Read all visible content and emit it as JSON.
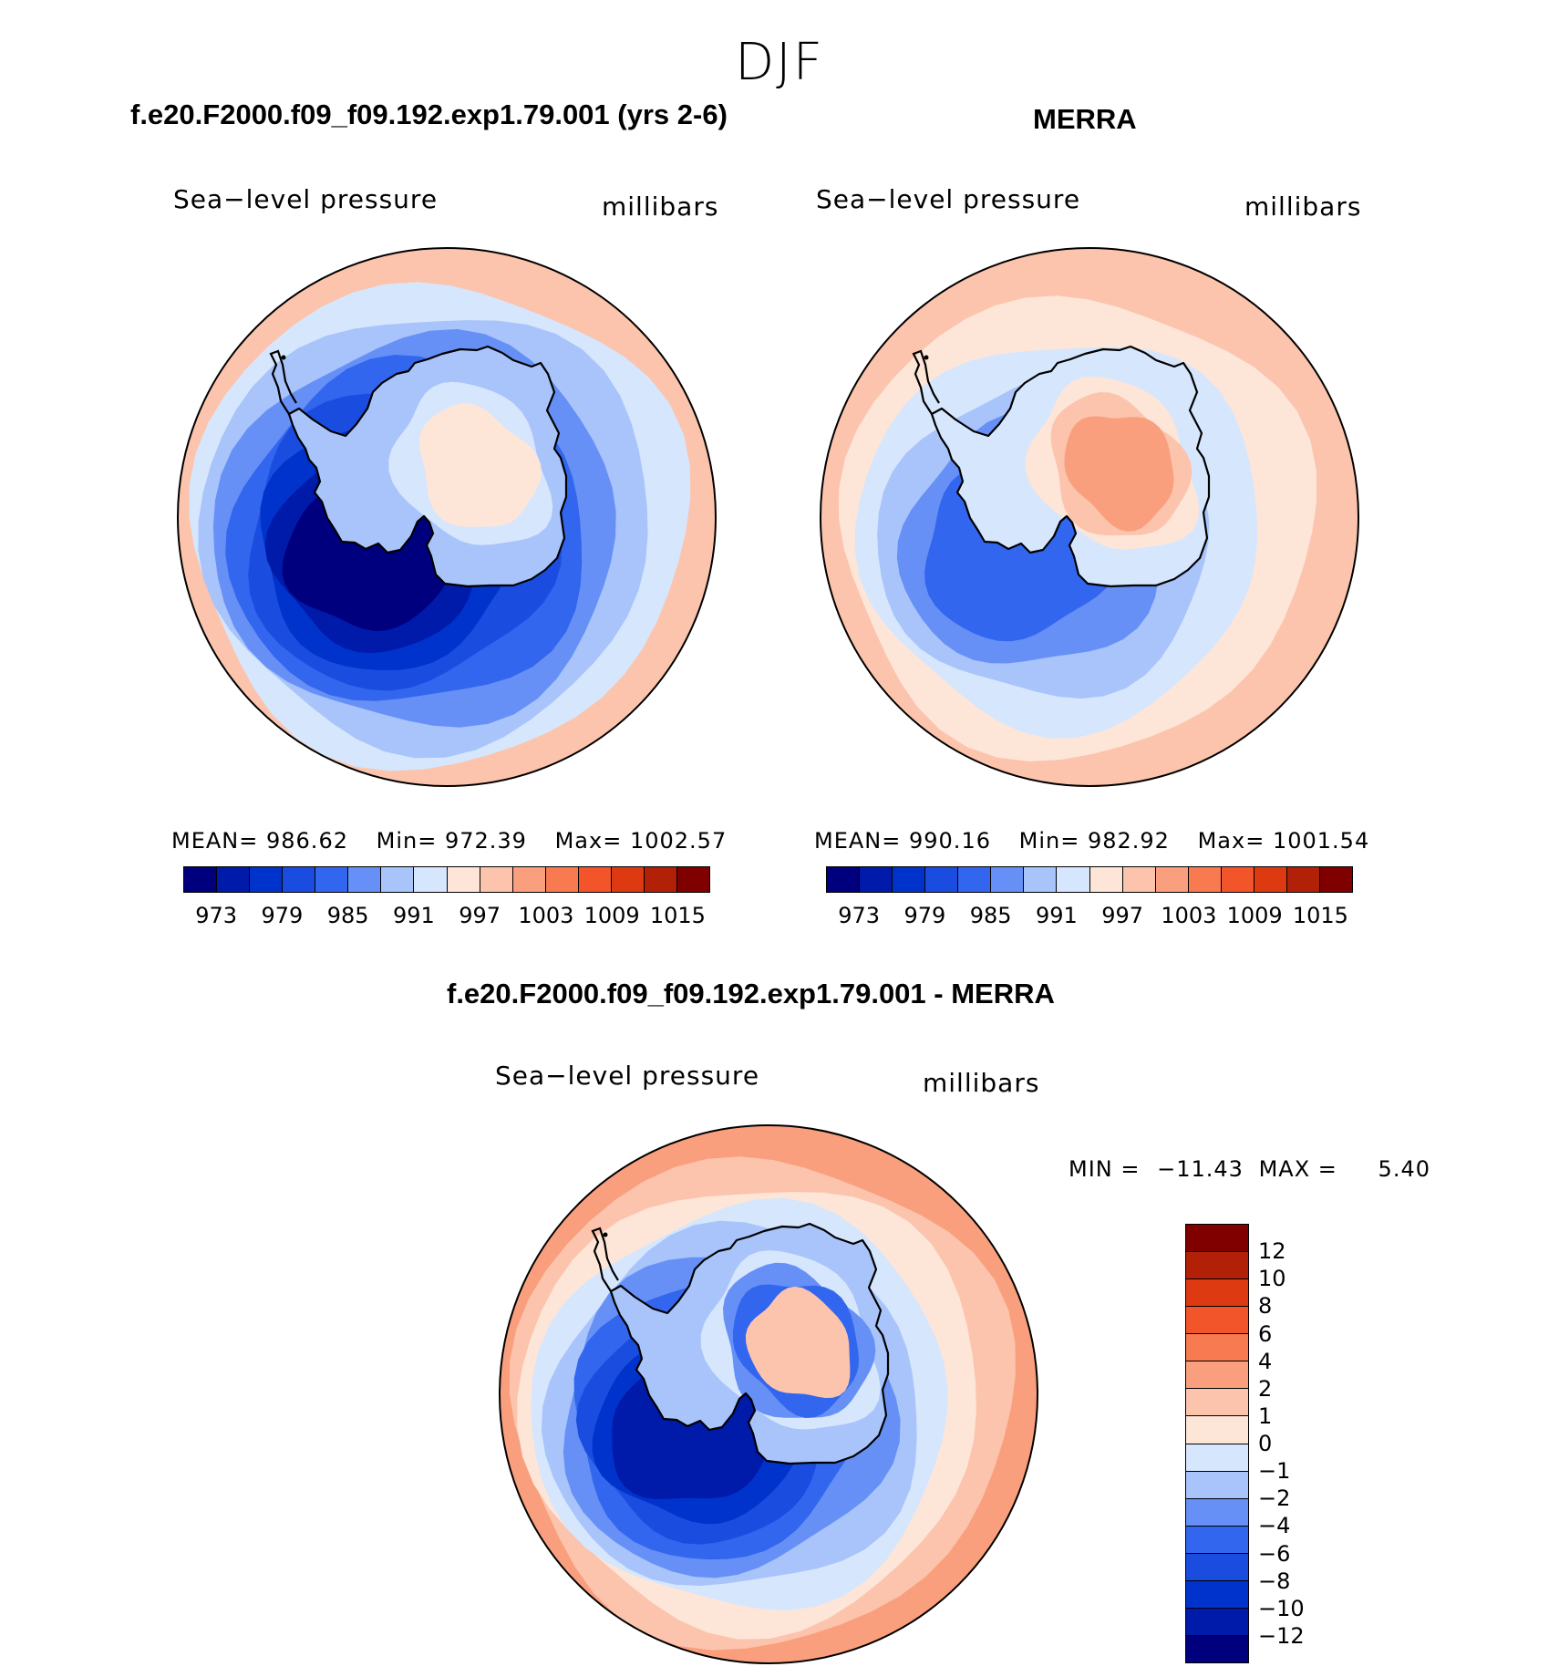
{
  "season": "DJF",
  "panels": [
    {
      "title": "f.e20.F2000.f09_f09.192.exp1.79.001 (yrs 2-6)",
      "variable": "Sea−level pressure",
      "units": "millibars",
      "stats": {
        "mean_label": "MEAN=",
        "mean": "986.62",
        "min_label": "Min=",
        "min": "972.39",
        "max_label": "Max=",
        "max": "1002.57"
      }
    },
    {
      "title": "MERRA",
      "variable": "Sea−level pressure",
      "units": "millibars",
      "stats": {
        "mean_label": "MEAN=",
        "mean": "990.16",
        "min_label": "Min=",
        "min": "982.92",
        "max_label": "Max=",
        "max": "1001.54"
      }
    }
  ],
  "abs_colorbar": {
    "colors": [
      "#00007f",
      "#001aaa",
      "#0033cc",
      "#1a4ddf",
      "#3366ee",
      "#6690f5",
      "#a8c4fb",
      "#d6e6fd",
      "#fde6d8",
      "#fcc4ad",
      "#f99f7d",
      "#f77a50",
      "#f2552a",
      "#dd3a12",
      "#b22008",
      "#800000"
    ],
    "ticks": [
      "973",
      "979",
      "985",
      "991",
      "997",
      "1003",
      "1009",
      "1015"
    ]
  },
  "diff_panel": {
    "title": "f.e20.F2000.f09_f09.192.exp1.79.001 - MERRA",
    "variable": "Sea−level pressure",
    "units": "millibars",
    "stats": {
      "min_label": "MIN =",
      "min": "−11.43",
      "max_label": "MAX =",
      "max": "5.40"
    }
  },
  "diff_colorbar": {
    "colors_top_to_bottom": [
      "#800000",
      "#b22008",
      "#dd3a12",
      "#f2552a",
      "#f77a50",
      "#f99f7d",
      "#fcc4ad",
      "#fde6d8",
      "#d6e6fd",
      "#a8c4fb",
      "#6690f5",
      "#3366ee",
      "#1a4ddf",
      "#0033cc",
      "#001aaa",
      "#00007f"
    ],
    "ticks_top_to_bottom": [
      "12",
      "10",
      "8",
      "6",
      "4",
      "2",
      "1",
      "0",
      "−1",
      "−2",
      "−4",
      "−6",
      "−8",
      "−10",
      "−12"
    ]
  },
  "map_fields": {
    "model": [
      "#fcc4ad",
      "#d6e6fd",
      "#a8c4fb",
      "#6690f5",
      "#3366ee",
      "#1a4ddf",
      "#0033cc",
      "#001aaa",
      "#00007f"
    ],
    "merra": [
      "#fcc4ad",
      "#fde6d8",
      "#d6e6fd",
      "#a8c4fb",
      "#6690f5",
      "#3366ee"
    ],
    "diff": [
      "#f99f7d",
      "#fcc4ad",
      "#fde6d8",
      "#d6e6fd",
      "#a8c4fb",
      "#6690f5",
      "#3366ee",
      "#1a4ddf",
      "#0033cc",
      "#001aaa"
    ],
    "land_model": [
      "#a8c4fb",
      "#d6e6fd",
      "#fde6d8"
    ],
    "land_merra": [
      "#d6e6fd",
      "#fde6d8",
      "#fcc4ad",
      "#f99f7d"
    ],
    "land_diff": [
      "#a8c4fb",
      "#d6e6fd",
      "#6690f5",
      "#3366ee",
      "#fcc4ad"
    ],
    "coast_color": "#000000"
  }
}
